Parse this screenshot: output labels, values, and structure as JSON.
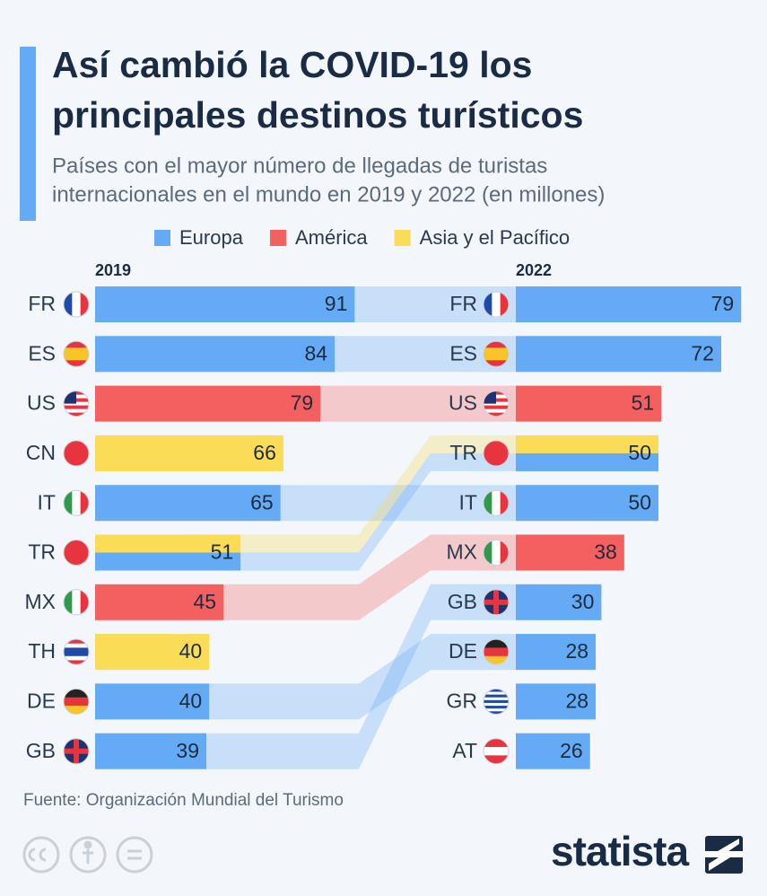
{
  "chart_data": {
    "type": "bar",
    "orientation": "horizontal",
    "title": [
      "Así cambió la COVID-19 los",
      "principales destinos turísticos"
    ],
    "subtitle": [
      "Países con el mayor número de llegadas de turistas",
      "internacionales en el mundo en 2019 y 2022 (en millones)"
    ],
    "series": [
      {
        "name": "Europa",
        "color": "#64aaf5"
      },
      {
        "name": "América",
        "color": "#f4605f"
      },
      {
        "name": "Asia y el Pacífico",
        "color": "#fadc57"
      }
    ],
    "panels": [
      {
        "title": "2019",
        "categories": [
          "FR",
          "ES",
          "US",
          "CN",
          "IT",
          "TR",
          "MX",
          "TH",
          "DE",
          "GB"
        ],
        "values": [
          91,
          84,
          79,
          66,
          65,
          51,
          45,
          40,
          40,
          39
        ],
        "regions": [
          [
            0
          ],
          [
            0
          ],
          [
            1
          ],
          [
            2
          ],
          [
            0
          ],
          [
            2,
            0
          ],
          [
            1
          ],
          [
            2
          ],
          [
            0
          ],
          [
            0
          ]
        ]
      },
      {
        "title": "2022",
        "categories": [
          "FR",
          "ES",
          "US",
          "TR",
          "IT",
          "MX",
          "GB",
          "DE",
          "GR",
          "AT"
        ],
        "values": [
          79,
          72,
          51,
          50,
          50,
          38,
          30,
          28,
          28,
          26
        ],
        "regions": [
          [
            0
          ],
          [
            0
          ],
          [
            1
          ],
          [
            2,
            0
          ],
          [
            0
          ],
          [
            1
          ],
          [
            0
          ],
          [
            0
          ],
          [
            0
          ],
          [
            0
          ]
        ]
      }
    ],
    "source": "Fuente: Organización Mundial del Turismo",
    "brand": "statista"
  }
}
